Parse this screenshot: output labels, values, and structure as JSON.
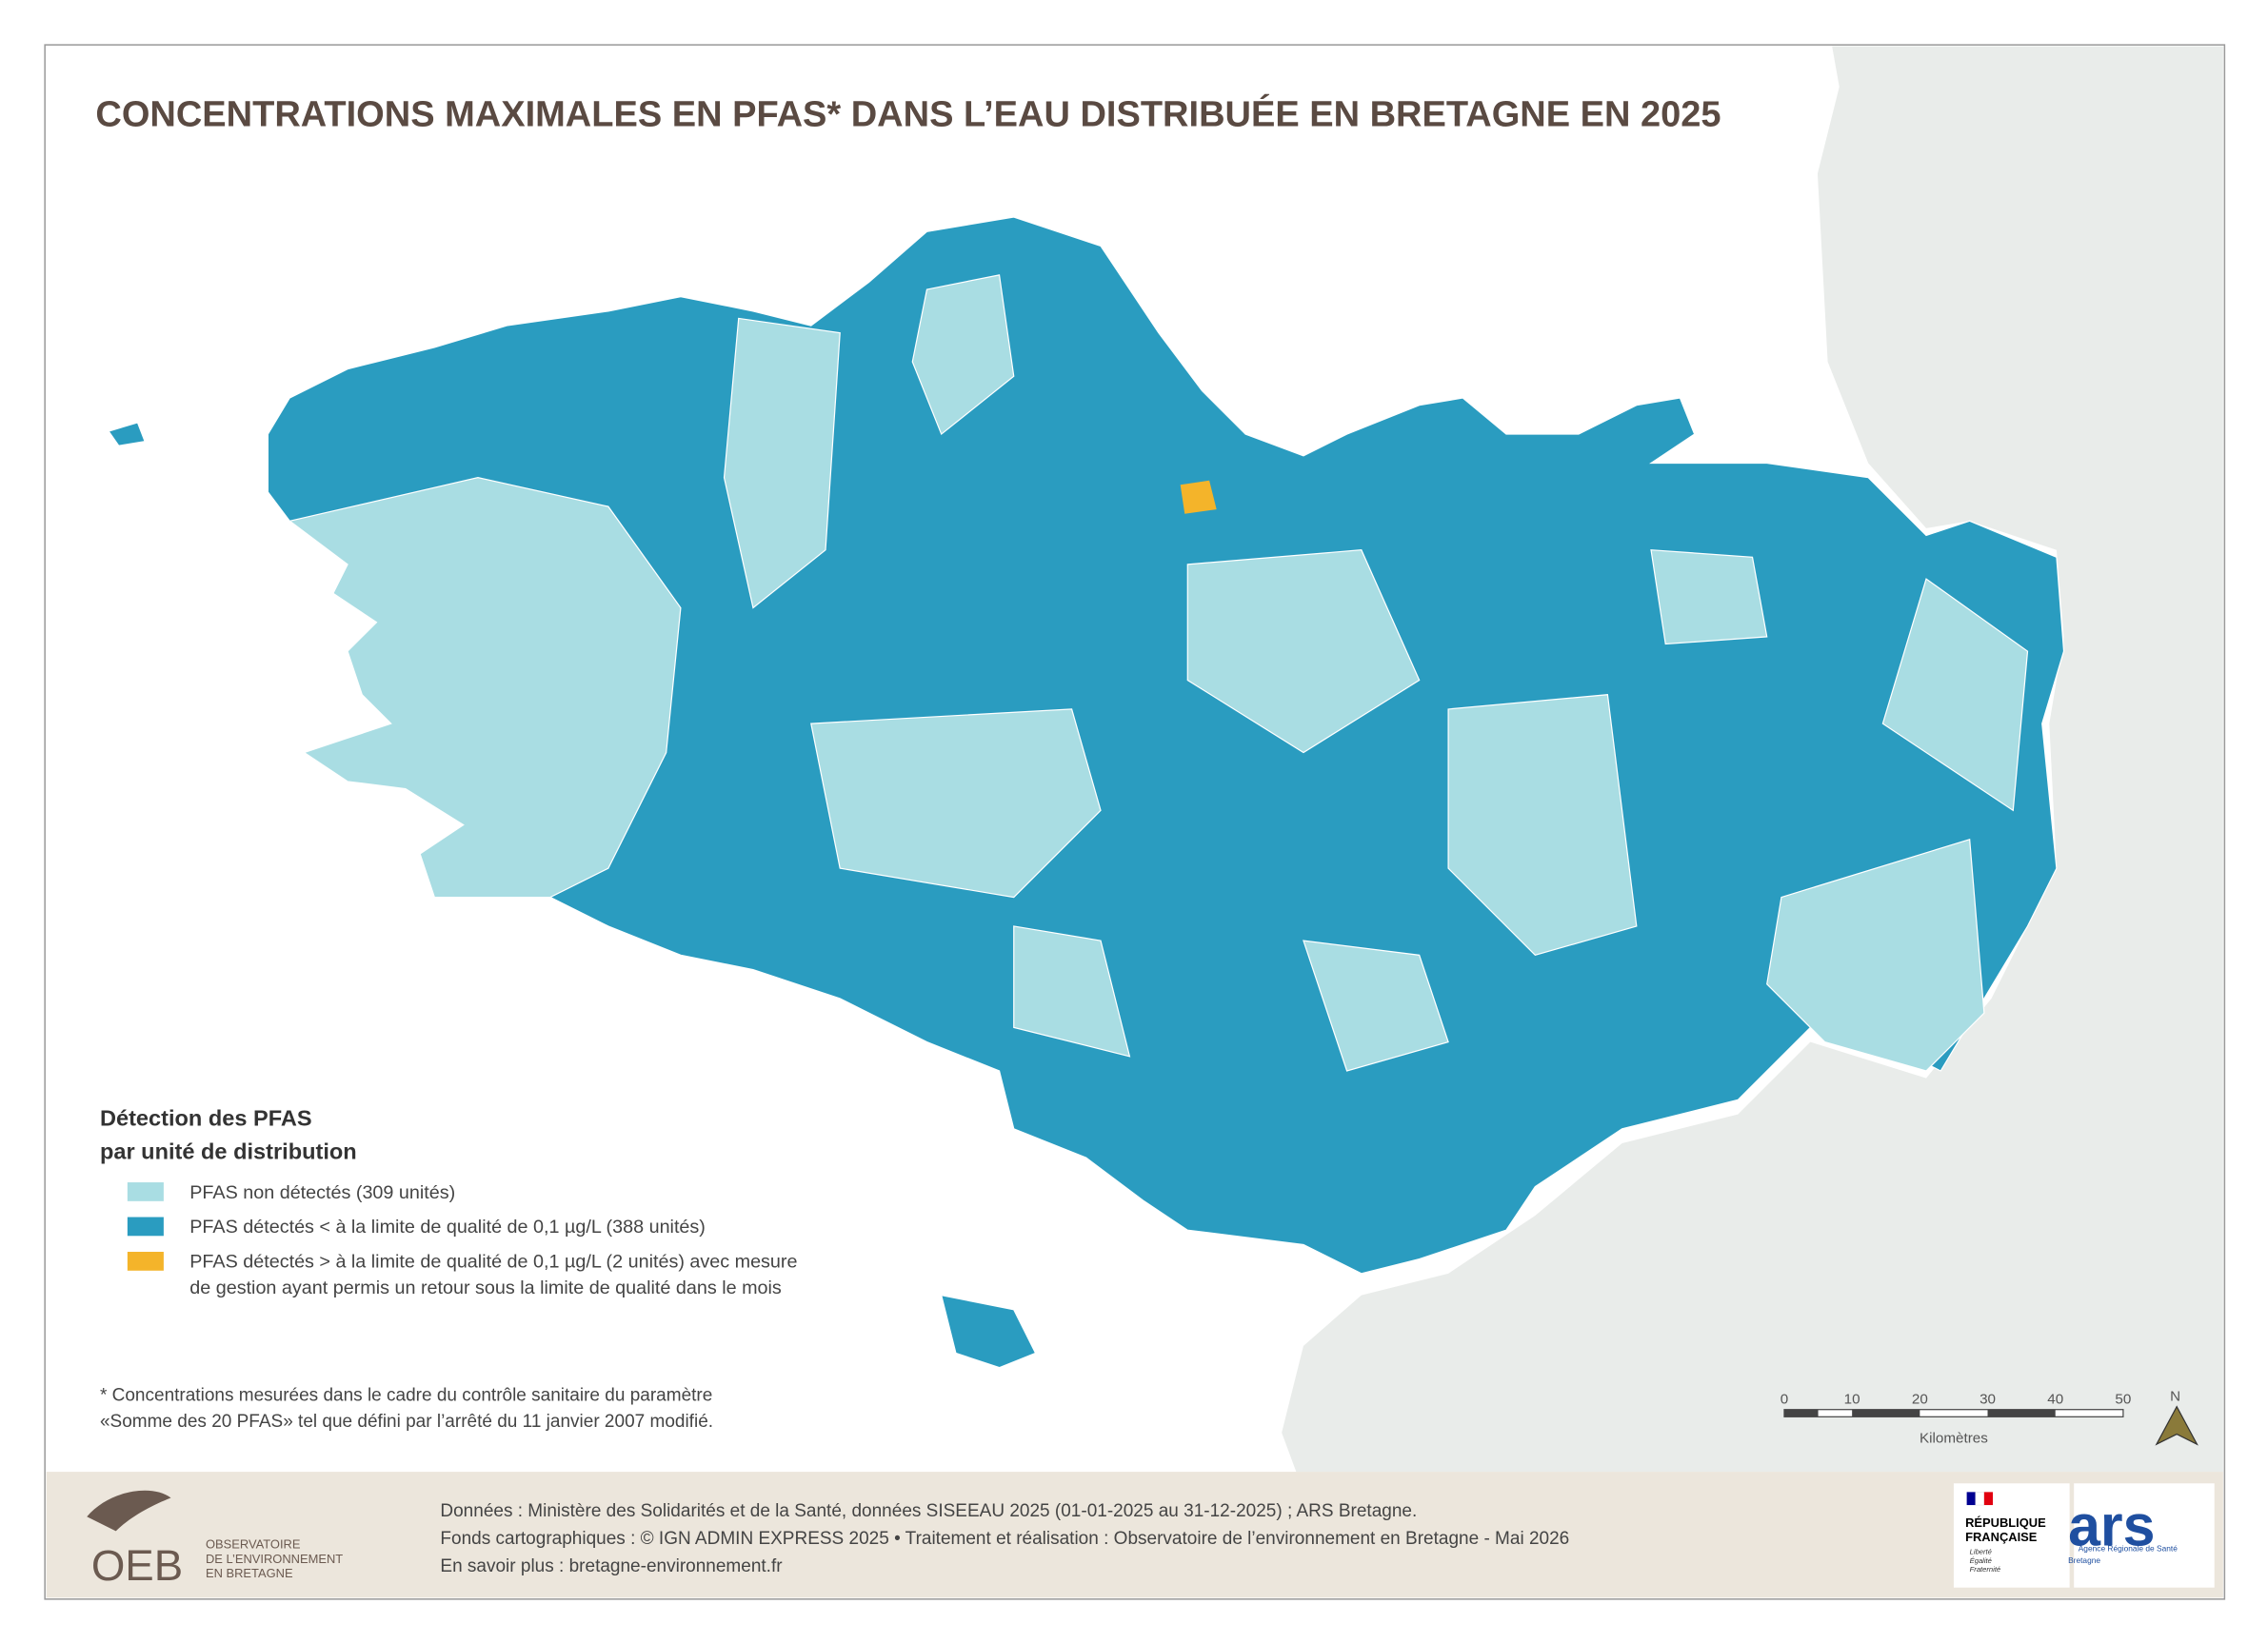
{
  "title": "CONCENTRATIONS MAXIMALES EN PFAS* DANS L’EAU DISTRIBUÉE EN BRETAGNE EN 2025",
  "legend": {
    "title": [
      "Détection des PFAS",
      "par unité de distribution"
    ],
    "items": [
      {
        "label": [
          "PFAS non détectés (309 unités)"
        ],
        "color": "#a9dde3"
      },
      {
        "label": [
          "PFAS détectés < à la limite de qualité de 0,1 µg/L (388 unités)"
        ],
        "color": "#2a9cc0"
      },
      {
        "label": [
          "PFAS détectés > à la limite de qualité de 0,1 µg/L (2 unités) avec mesure",
          "de gestion ayant permis un retour sous la limite de qualité dans le mois"
        ],
        "color": "#f4b42a"
      }
    ]
  },
  "note": [
    "* Concentrations mesurées dans le cadre du contrôle sanitaire du paramètre",
    "«Somme des 20 PFAS» tel que défini par l’arrêté du 11 janvier 2007 modifié."
  ],
  "scale_bar": {
    "ticks": [
      "0",
      "10",
      "20",
      "30",
      "40",
      "50"
    ],
    "unit": "Kilomètres"
  },
  "north": "N",
  "footer": {
    "lines": [
      "Données : Ministère des Solidarités et de la Santé, données SISEEAU 2025 (01-01-2025 au 31-12-2025) ; ARS Bretagne.",
      "Fonds cartographiques : © IGN ADMIN EXPRESS 2025 • Traitement et réalisation : Observatoire de l’environnement en Bretagne - Mai 2026",
      "En savoir plus : bretagne-environnement.fr"
    ],
    "oeb": {
      "acronym": "OEB",
      "name": [
        "OBSERVATOIRE",
        "DE L’ENVIRONNEMENT",
        "EN BRETAGNE"
      ]
    },
    "republique": {
      "name": [
        "RÉPUBLIQUE",
        "FRANÇAISE"
      ],
      "motto": [
        "Liberté",
        "Égalité",
        "Fraternité"
      ]
    },
    "ars": {
      "acronym": "ars",
      "name": "Agence Régionale de Santé",
      "region": "Bretagne"
    }
  }
}
